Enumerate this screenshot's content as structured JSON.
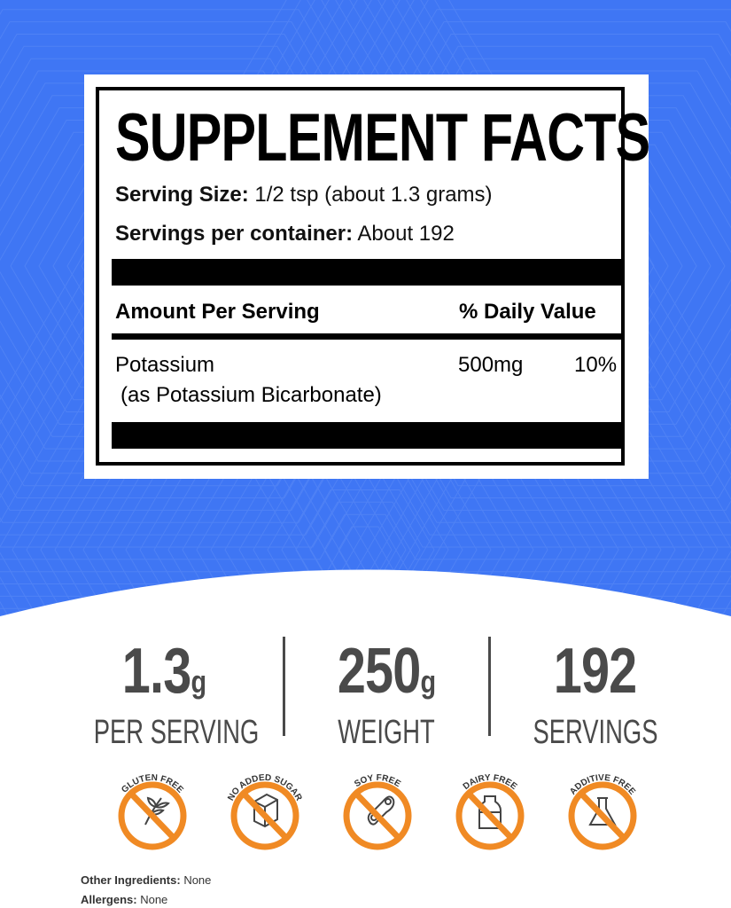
{
  "colors": {
    "background": "#3f76f4",
    "badge_orange": "#f08a24",
    "text_gray": "#4a4a4a"
  },
  "label": {
    "title": "SUPPLEMENT FACTS",
    "serving_size_label": "Serving Size:",
    "serving_size_value": "1/2 tsp (about 1.3 grams)",
    "servings_label": "Servings per container:",
    "servings_value": "About 192",
    "amount_header": "Amount Per Serving",
    "dv_header": "% Daily Value",
    "nutrient": "Potassium",
    "nutrient_source": "(as Potassium Bicarbonate)",
    "amount": "500mg",
    "dv": "10%"
  },
  "stats": [
    {
      "value": "1.3",
      "unit": "g",
      "caption": "PER SERVING"
    },
    {
      "value": "250",
      "unit": "g",
      "caption": "WEIGHT"
    },
    {
      "value": "192",
      "unit": "",
      "caption": "SERVINGS"
    }
  ],
  "badges": [
    {
      "label": "GLUTEN FREE",
      "icon": "wheat-icon"
    },
    {
      "label": "NO ADDED SUGAR",
      "icon": "sugar-cube-icon"
    },
    {
      "label": "SOY FREE",
      "icon": "soybean-icon"
    },
    {
      "label": "DAIRY FREE",
      "icon": "milk-bottle-icon"
    },
    {
      "label": "ADDITIVE FREE",
      "icon": "flask-icon"
    }
  ],
  "footer": {
    "other_label": "Other Ingredients:",
    "other_value": "None",
    "allergens_label": "Allergens:",
    "allergens_value": "None"
  }
}
